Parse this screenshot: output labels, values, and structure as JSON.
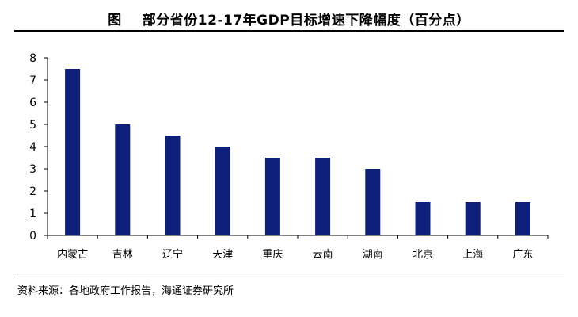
{
  "header": {
    "figure_label": "图",
    "title": "部分省份12-17年GDP目标增速下降幅度（百分点）"
  },
  "source": {
    "label": "资料来源：",
    "text": "各地政府工作报告，海通证券研究所"
  },
  "chart_data": {
    "type": "bar",
    "title": "部分省份12-17年GDP目标增速下降幅度（百分点）",
    "xlabel": "",
    "ylabel": "",
    "categories": [
      "内蒙古",
      "吉林",
      "辽宁",
      "天津",
      "重庆",
      "云南",
      "湖南",
      "北京",
      "上海",
      "广东"
    ],
    "values": [
      7.5,
      5,
      4.5,
      4,
      3.5,
      3.5,
      3,
      1.5,
      1.5,
      1.5
    ],
    "yticks": [
      0,
      1,
      2,
      3,
      4,
      5,
      6,
      7,
      8
    ],
    "ylim": [
      0,
      8
    ],
    "grid": false,
    "legend": "none",
    "bar_color": "#0d1f7a"
  }
}
